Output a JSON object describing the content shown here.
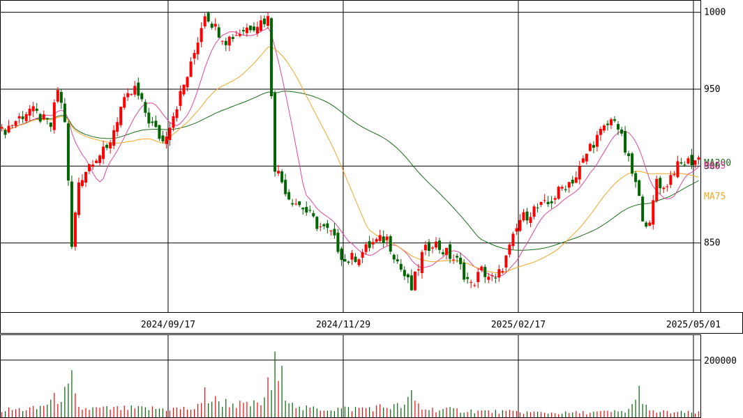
{
  "chart_data": {
    "type": "candlestick",
    "x_tick_labels": [
      "2024/09/17",
      "2024/11/29",
      "2025/02/17",
      "2025/05/01"
    ],
    "x_tick_index": [
      48,
      98,
      148,
      198
    ],
    "price_axis": {
      "ticks": [
        1000,
        950,
        900,
        850
      ],
      "range": [
        805,
        1008
      ],
      "grid": true
    },
    "volume_axis": {
      "ticks": [
        200000
      ],
      "range": [
        0,
        290000
      ]
    },
    "moving_averages": [
      {
        "name": "MA200",
        "color": "#1a6b1a"
      },
      {
        "name": "MA25",
        "color": "#e0449c"
      },
      {
        "name": "MA75",
        "color": "#f5a623"
      }
    ],
    "colors": {
      "up": "#ff0000",
      "down": "#006400",
      "grid": "#000000"
    },
    "price_waypoints": [
      [
        0,
        922
      ],
      [
        8,
        937
      ],
      [
        14,
        926
      ],
      [
        16,
        950
      ],
      [
        18,
        930
      ],
      [
        20,
        847
      ],
      [
        22,
        890
      ],
      [
        26,
        905
      ],
      [
        30,
        910
      ],
      [
        34,
        938
      ],
      [
        38,
        950
      ],
      [
        42,
        930
      ],
      [
        46,
        916
      ],
      [
        50,
        940
      ],
      [
        54,
        965
      ],
      [
        58,
        1000
      ],
      [
        61,
        990
      ],
      [
        64,
        982
      ],
      [
        70,
        990
      ],
      [
        76,
        996
      ],
      [
        78,
        900
      ],
      [
        82,
        880
      ],
      [
        86,
        873
      ],
      [
        90,
        862
      ],
      [
        94,
        856
      ],
      [
        98,
        838
      ],
      [
        102,
        842
      ],
      [
        106,
        850
      ],
      [
        110,
        853
      ],
      [
        114,
        833
      ],
      [
        117,
        820
      ],
      [
        120,
        842
      ],
      [
        123,
        851
      ],
      [
        126,
        845
      ],
      [
        130,
        838
      ],
      [
        134,
        822
      ],
      [
        137,
        832
      ],
      [
        141,
        825
      ],
      [
        144,
        840
      ],
      [
        148,
        865
      ],
      [
        152,
        872
      ],
      [
        156,
        875
      ],
      [
        160,
        886
      ],
      [
        164,
        893
      ],
      [
        168,
        913
      ],
      [
        172,
        924
      ],
      [
        175,
        932
      ],
      [
        178,
        910
      ],
      [
        181,
        888
      ],
      [
        183,
        868
      ],
      [
        185,
        860
      ],
      [
        187,
        892
      ],
      [
        189,
        885
      ],
      [
        192,
        898
      ],
      [
        195,
        902
      ],
      [
        198,
        904
      ],
      [
        199,
        905
      ]
    ],
    "volume_waypoints": [
      [
        0,
        25000
      ],
      [
        10,
        30000
      ],
      [
        20,
        95000
      ],
      [
        22,
        30000
      ],
      [
        40,
        30000
      ],
      [
        55,
        30000
      ],
      [
        60,
        60000
      ],
      [
        70,
        40000
      ],
      [
        76,
        55000
      ],
      [
        78,
        150000
      ],
      [
        80,
        110000
      ],
      [
        85,
        30000
      ],
      [
        100,
        30000
      ],
      [
        115,
        40000
      ],
      [
        117,
        70000
      ],
      [
        120,
        30000
      ],
      [
        140,
        20000
      ],
      [
        160,
        15000
      ],
      [
        178,
        20000
      ],
      [
        182,
        60000
      ],
      [
        185,
        20000
      ],
      [
        199,
        15000
      ]
    ],
    "volume_spikes": {
      "78": 230000,
      "80": 180000,
      "76": 140000,
      "20": 165000,
      "117": 95000,
      "182": 110000,
      "58": 105000
    }
  }
}
